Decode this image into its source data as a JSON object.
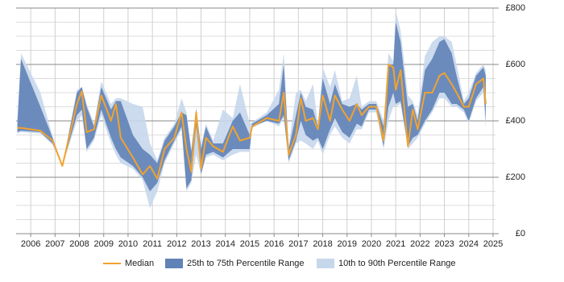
{
  "chart_data": {
    "type": "band_line",
    "x": [
      2005.45,
      2005.6,
      2006.4,
      2006.9,
      2007.3,
      2007.9,
      2008.1,
      2008.3,
      2008.6,
      2008.9,
      2009.3,
      2009.5,
      2009.7,
      2010.2,
      2010.6,
      2010.9,
      2011.2,
      2011.5,
      2011.9,
      2012.2,
      2012.4,
      2012.6,
      2012.8,
      2013.0,
      2013.2,
      2013.5,
      2013.9,
      2014.3,
      2014.6,
      2015.0,
      2015.1,
      2015.7,
      2016.2,
      2016.4,
      2016.6,
      2016.9,
      2017.1,
      2017.3,
      2017.6,
      2017.8,
      2018.0,
      2018.3,
      2018.5,
      2018.8,
      2019.1,
      2019.4,
      2019.6,
      2019.9,
      2020.2,
      2020.5,
      2020.7,
      2020.9,
      2021.0,
      2021.2,
      2021.5,
      2021.7,
      2021.9,
      2022.2,
      2022.5,
      2022.8,
      2023.0,
      2023.3,
      2023.5,
      2023.8,
      2024.0,
      2024.3,
      2024.6,
      2024.7
    ],
    "series": [
      {
        "name": "10th to 90th Percentile Range",
        "color": "#c6d7ec",
        "lower": [
          355,
          360,
          355,
          315,
          240,
          400,
          420,
          290,
          330,
          420,
          320,
          280,
          250,
          230,
          190,
          90,
          150,
          250,
          320,
          370,
          150,
          180,
          280,
          210,
          270,
          280,
          260,
          280,
          290,
          290,
          375,
          400,
          380,
          410,
          250,
          320,
          330,
          320,
          300,
          330,
          280,
          350,
          380,
          340,
          320,
          370,
          370,
          430,
          430,
          300,
          400,
          450,
          450,
          460,
          300,
          320,
          340,
          390,
          430,
          480,
          480,
          450,
          450,
          430,
          390,
          470,
          500,
          370
        ],
        "upper": [
          400,
          640,
          500,
          345,
          240,
          510,
          520,
          460,
          390,
          540,
          460,
          480,
          480,
          460,
          450,
          320,
          260,
          340,
          390,
          480,
          430,
          300,
          450,
          310,
          390,
          330,
          440,
          410,
          530,
          390,
          395,
          430,
          510,
          640,
          310,
          500,
          510,
          470,
          530,
          390,
          590,
          520,
          580,
          470,
          480,
          560,
          450,
          470,
          470,
          400,
          640,
          610,
          790,
          720,
          490,
          470,
          420,
          630,
          680,
          700,
          700,
          680,
          600,
          470,
          500,
          570,
          600,
          580
        ]
      },
      {
        "name": "25th to 75th Percentile Range",
        "color": "#6082b6",
        "lower": [
          360,
          365,
          360,
          320,
          240,
          420,
          440,
          300,
          340,
          440,
          340,
          300,
          270,
          240,
          200,
          150,
          180,
          260,
          330,
          380,
          160,
          190,
          380,
          210,
          280,
          290,
          270,
          300,
          300,
          300,
          380,
          400,
          390,
          420,
          260,
          330,
          400,
          350,
          330,
          340,
          300,
          370,
          410,
          360,
          340,
          390,
          380,
          440,
          440,
          310,
          450,
          500,
          460,
          470,
          310,
          340,
          350,
          400,
          440,
          500,
          500,
          460,
          460,
          440,
          400,
          480,
          520,
          400
        ],
        "upper": [
          390,
          620,
          450,
          340,
          240,
          500,
          520,
          450,
          380,
          520,
          440,
          470,
          470,
          350,
          300,
          280,
          250,
          330,
          380,
          430,
          420,
          290,
          440,
          300,
          380,
          320,
          320,
          400,
          430,
          350,
          390,
          420,
          460,
          600,
          300,
          420,
          500,
          450,
          440,
          380,
          550,
          460,
          530,
          460,
          450,
          460,
          440,
          460,
          460,
          380,
          600,
          600,
          750,
          680,
          450,
          460,
          400,
          580,
          620,
          680,
          690,
          640,
          560,
          460,
          480,
          560,
          590,
          560
        ]
      },
      {
        "name": "Median",
        "color": "#f2a22e",
        "values": [
          375,
          375,
          365,
          330,
          240,
          460,
          505,
          360,
          370,
          490,
          400,
          460,
          340,
          270,
          210,
          240,
          195,
          300,
          340,
          430,
          300,
          220,
          430,
          230,
          340,
          310,
          290,
          380,
          330,
          340,
          380,
          410,
          400,
          500,
          280,
          350,
          480,
          400,
          410,
          370,
          490,
          400,
          490,
          440,
          400,
          460,
          420,
          450,
          450,
          330,
          600,
          590,
          510,
          580,
          310,
          440,
          370,
          500,
          500,
          560,
          570,
          530,
          500,
          450,
          450,
          530,
          550,
          460
        ]
      }
    ],
    "xlim": [
      2005.4,
      2025.1
    ],
    "xticks": [
      2006,
      2007,
      2008,
      2009,
      2010,
      2011,
      2012,
      2013,
      2014,
      2015,
      2016,
      2017,
      2018,
      2019,
      2020,
      2021,
      2022,
      2023,
      2024,
      2025
    ],
    "ylim": [
      0,
      800
    ],
    "yticks": [
      {
        "value": 0,
        "label": "£0"
      },
      {
        "value": 200,
        "label": "£200"
      },
      {
        "value": 400,
        "label": "£400"
      },
      {
        "value": 600,
        "label": "£600"
      },
      {
        "value": 800,
        "label": "£800"
      }
    ],
    "yminorticks": [
      50,
      100,
      150,
      250,
      300,
      350,
      450,
      500,
      550,
      650,
      700,
      750
    ],
    "grid": true
  }
}
